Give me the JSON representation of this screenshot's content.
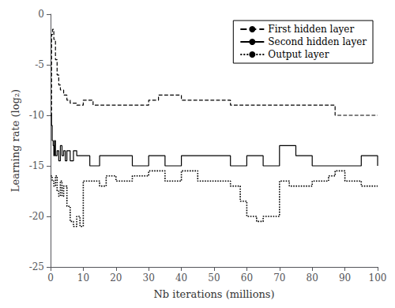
{
  "chart_data": {
    "type": "line",
    "xlabel": "Nb iterations (millions)",
    "ylabel": "Learning rate (log₂)",
    "xlim": [
      0,
      100
    ],
    "ylim": [
      -25,
      0
    ],
    "xticks": [
      0,
      10,
      20,
      30,
      40,
      50,
      60,
      70,
      80,
      90,
      100
    ],
    "yticks": [
      0,
      -5,
      -10,
      -15,
      -20,
      -25
    ],
    "grid": false,
    "legend": "upper right",
    "series": [
      {
        "name": "First hidden layer",
        "color": "#000000",
        "line_style": "dashed",
        "x": [
          0,
          0.3,
          0.6,
          1.0,
          1.5,
          2.0,
          2.5,
          3.0,
          4.0,
          5.0,
          6.0,
          8.0,
          10.0,
          13.0,
          20.0,
          30.0,
          33.0,
          40.0,
          50.0,
          55.0,
          63.0,
          80.0,
          87.0,
          100.0
        ],
        "values": [
          -10.0,
          -2.0,
          -1.5,
          -2.5,
          -4.5,
          -6.0,
          -7.0,
          -7.5,
          -8.0,
          -8.5,
          -8.8,
          -9.0,
          -8.5,
          -9.0,
          -9.0,
          -8.5,
          -8.0,
          -8.5,
          -8.5,
          -9.0,
          -9.0,
          -9.0,
          -10.0,
          -10.0
        ]
      },
      {
        "name": "Second hidden layer",
        "color": "#000000",
        "line_style": "solid",
        "x": [
          0,
          0.3,
          0.5,
          0.8,
          1.0,
          1.2,
          1.5,
          2.0,
          2.5,
          3.0,
          3.5,
          4.0,
          4.5,
          5.0,
          6.0,
          7.0,
          8.0,
          10.0,
          12.0,
          15.0,
          20.0,
          25.0,
          30.0,
          35.0,
          40.0,
          45.0,
          55.0,
          60.0,
          65.0,
          70.0,
          75.0,
          80.0,
          85.0,
          90.0,
          95.0,
          100.0
        ],
        "values": [
          -10.0,
          -11.0,
          -12.5,
          -13.0,
          -14.0,
          -12.5,
          -14.0,
          -13.5,
          -14.5,
          -13.0,
          -14.0,
          -13.5,
          -14.5,
          -13.5,
          -14.5,
          -13.5,
          -14.0,
          -14.0,
          -15.0,
          -14.0,
          -14.0,
          -15.0,
          -14.0,
          -15.0,
          -14.0,
          -14.0,
          -15.0,
          -14.0,
          -15.0,
          -13.0,
          -14.0,
          -15.0,
          -15.0,
          -15.0,
          -14.0,
          -15.0
        ]
      },
      {
        "name": "Output layer",
        "color": "#000000",
        "line_style": "dotted",
        "x": [
          0,
          0.5,
          1.0,
          1.5,
          2.0,
          2.5,
          3.0,
          3.5,
          4.0,
          5.0,
          6.0,
          7.0,
          8.0,
          9.0,
          10.0,
          12.0,
          15.0,
          17.0,
          20.0,
          25.0,
          30.0,
          35.0,
          40.0,
          45.0,
          50.0,
          55.0,
          58.0,
          60.0,
          63.0,
          65.0,
          70.0,
          73.0,
          80.0,
          85.0,
          87.0,
          90.0,
          95.0,
          100.0
        ],
        "values": [
          -16.0,
          -16.5,
          -17.0,
          -16.0,
          -17.5,
          -18.0,
          -16.5,
          -18.0,
          -17.0,
          -19.0,
          -20.5,
          -21.0,
          -20.0,
          -21.0,
          -16.5,
          -16.5,
          -17.0,
          -16.0,
          -16.5,
          -16.0,
          -15.5,
          -16.5,
          -15.5,
          -16.5,
          -16.5,
          -17.0,
          -18.5,
          -20.0,
          -20.5,
          -20.0,
          -16.5,
          -17.0,
          -16.5,
          -16.0,
          -15.5,
          -16.5,
          -17.0,
          -17.0
        ]
      }
    ]
  }
}
